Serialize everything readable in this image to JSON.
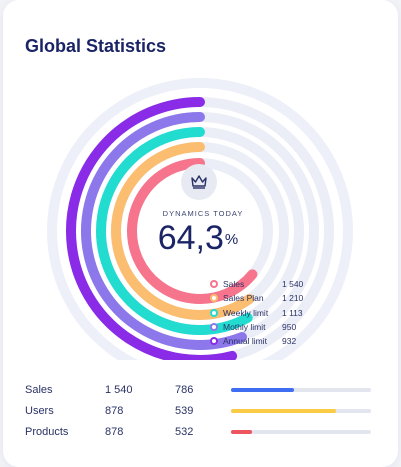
{
  "header": {
    "title": "Global Statistics"
  },
  "center": {
    "icon": "crown-icon",
    "label": "DYNAMICS TODAY",
    "value": "64,3",
    "unit": "%",
    "progress_fraction": 0.643
  },
  "rings": [
    {
      "name": "Sales",
      "value": "1 540",
      "color": "#f7748d",
      "fraction": 0.64
    },
    {
      "name": "Sales Plan",
      "value": "1 210",
      "color": "#fbbd6f",
      "fraction": 0.6
    },
    {
      "name": "Weekly limit",
      "value": "1 113",
      "color": "#22dcd0",
      "fraction": 0.58
    },
    {
      "name": "Mothly limit",
      "value": "950",
      "color": "#8c78ea",
      "fraction": 0.56
    },
    {
      "name": "Annual limit",
      "value": "932",
      "color": "#8a2be8",
      "fraction": 0.54
    }
  ],
  "legend": [
    {
      "label": "Sales",
      "value": "1 540",
      "color": "#f7748d"
    },
    {
      "label": "Sales Plan",
      "value": "1 210",
      "color": "#fbbd6f"
    },
    {
      "label": "Weekly limit",
      "value": "1 113",
      "color": "#22dcd0"
    },
    {
      "label": "Mothly limit",
      "value": "950",
      "color": "#8c78ea"
    },
    {
      "label": "Annual limit",
      "value": "932",
      "color": "#8a2be8"
    }
  ],
  "stats": [
    {
      "name": "Sales",
      "a": "1 540",
      "b": "786",
      "bar_color": "#3f6ef2",
      "fill_fraction": 0.45
    },
    {
      "name": "Users",
      "a": "878",
      "b": "539",
      "bar_color": "#fccb45",
      "fill_fraction": 0.75
    },
    {
      "name": "Products",
      "a": "878",
      "b": "532",
      "bar_color": "#ec5460",
      "fill_fraction": 0.15
    }
  ]
}
